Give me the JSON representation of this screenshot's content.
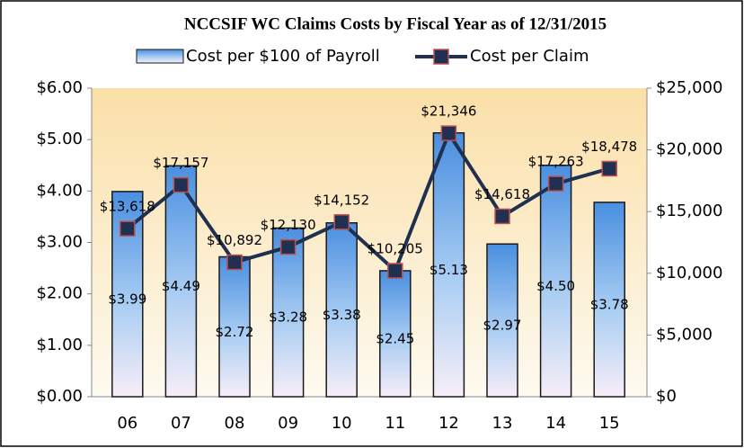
{
  "chart_data": {
    "type": "bar",
    "title": "NCCSIF WC Claims Costs by Fiscal Year as of 12/31/2015",
    "categories": [
      "06",
      "07",
      "08",
      "09",
      "10",
      "11",
      "12",
      "13",
      "14",
      "15"
    ],
    "series": [
      {
        "name": "Cost per $100 of Payroll",
        "type": "bar",
        "color": "#4a8fe0",
        "values": [
          3.99,
          4.49,
          2.72,
          3.28,
          3.38,
          2.45,
          5.13,
          2.97,
          4.5,
          3.78
        ],
        "value_labels": [
          "$3.99",
          "$4.49",
          "$2.72",
          "$3.28",
          "$3.38",
          "$2.45",
          "$5.13",
          "$2.97",
          "$4.50",
          "$3.78"
        ]
      },
      {
        "name": "Cost per Claim",
        "type": "line",
        "axis": "y2",
        "color": "#1f3050",
        "marker_edge": "#c0504d",
        "values": [
          13618,
          17157,
          10892,
          12130,
          14152,
          10205,
          21346,
          14618,
          17263,
          18478
        ],
        "value_labels": [
          "$13,618",
          "$17,157",
          "$10,892",
          "$12,130",
          "$14,152",
          "$10,205",
          "$21,346",
          "$14,618",
          "$17,263",
          "$18,478"
        ]
      }
    ],
    "ylim": [
      0,
      6
    ],
    "yticks": [
      {
        "value": 0,
        "label": "$0.00"
      },
      {
        "value": 1,
        "label": "$1.00"
      },
      {
        "value": 2,
        "label": "$2.00"
      },
      {
        "value": 3,
        "label": "$3.00"
      },
      {
        "value": 4,
        "label": "$4.00"
      },
      {
        "value": 5,
        "label": "$5.00"
      },
      {
        "value": 6,
        "label": "$6.00"
      }
    ],
    "y2lim": [
      0,
      25000
    ],
    "y2ticks": [
      {
        "value": 0,
        "label": "$0"
      },
      {
        "value": 5000,
        "label": "$5,000"
      },
      {
        "value": 10000,
        "label": "$10,000"
      },
      {
        "value": 15000,
        "label": "$15,000"
      },
      {
        "value": 20000,
        "label": "$20,000"
      },
      {
        "value": 25000,
        "label": "$25,000"
      }
    ]
  }
}
